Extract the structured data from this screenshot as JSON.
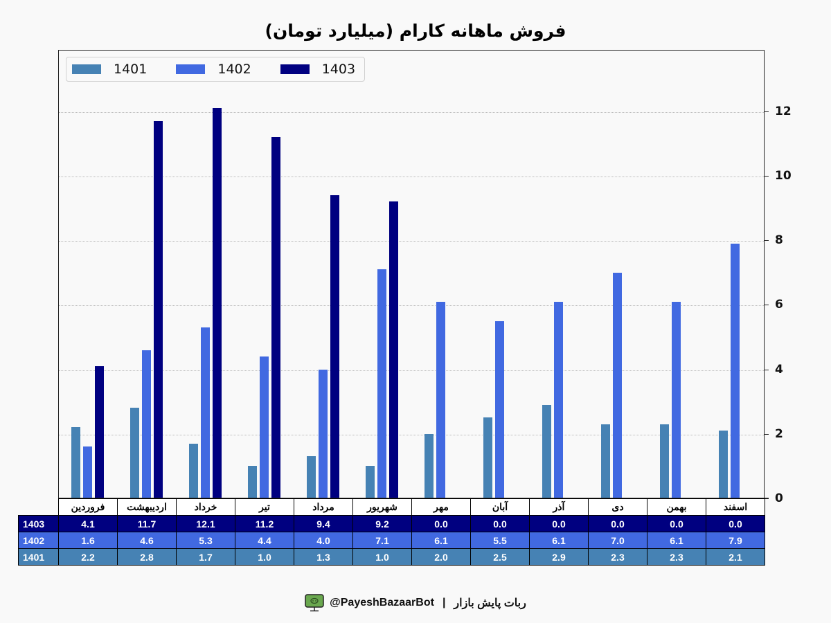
{
  "title": "فروش ماهانه کارام (میلیارد تومان)",
  "colors": {
    "1401": "#4682b4",
    "1402": "#4169e1",
    "1403": "#000080",
    "background": "#f9f9f9"
  },
  "legend": [
    {
      "label": "1401",
      "color": "#4682b4"
    },
    {
      "label": "1402",
      "color": "#4169e1"
    },
    {
      "label": "1403",
      "color": "#000080"
    }
  ],
  "y_ticks": [
    "0",
    "2",
    "4",
    "6",
    "8",
    "10",
    "12"
  ],
  "table": {
    "months": [
      "فروردین",
      "اردیبهشت",
      "خرداد",
      "تیر",
      "مرداد",
      "شهریور",
      "مهر",
      "آبان",
      "آذر",
      "دی",
      "بهمن",
      "اسفند"
    ],
    "rows": [
      {
        "label": "1403",
        "values": [
          "4.1",
          "11.7",
          "12.1",
          "11.2",
          "9.4",
          "9.2",
          "0.0",
          "0.0",
          "0.0",
          "0.0",
          "0.0",
          "0.0"
        ]
      },
      {
        "label": "1402",
        "values": [
          "1.6",
          "4.6",
          "5.3",
          "4.4",
          "4.0",
          "7.1",
          "6.1",
          "5.5",
          "6.1",
          "7.0",
          "6.1",
          "7.9"
        ]
      },
      {
        "label": "1401",
        "values": [
          "2.2",
          "2.8",
          "1.7",
          "1.0",
          "1.3",
          "1.0",
          "2.0",
          "2.5",
          "2.9",
          "2.3",
          "2.3",
          "2.1"
        ]
      }
    ]
  },
  "footer": {
    "handle": "@PayeshBazaarBot",
    "separator": "|",
    "bot_name": "ربات پایش بازار",
    "icon": "monitor-bot-icon"
  },
  "chart_data": {
    "type": "bar",
    "title": "فروش ماهانه کارام (میلیارد تومان)",
    "xlabel": "",
    "ylabel": "",
    "ylim": [
      0,
      13.9
    ],
    "y_axis_position": "right",
    "grid": "horizontal dotted",
    "legend_position": "upper left",
    "categories": [
      "فروردین",
      "اردیبهشت",
      "خرداد",
      "تیر",
      "مرداد",
      "شهریور",
      "مهر",
      "آبان",
      "آذر",
      "دی",
      "بهمن",
      "اسفند"
    ],
    "series": [
      {
        "name": "1401",
        "color": "#4682b4",
        "values": [
          2.2,
          2.8,
          1.7,
          1.0,
          1.3,
          1.0,
          2.0,
          2.5,
          2.9,
          2.3,
          2.3,
          2.1
        ]
      },
      {
        "name": "1402",
        "color": "#4169e1",
        "values": [
          1.6,
          4.6,
          5.3,
          4.4,
          4.0,
          7.1,
          6.1,
          5.5,
          6.1,
          7.0,
          6.1,
          7.9
        ]
      },
      {
        "name": "1403",
        "color": "#000080",
        "values": [
          4.1,
          11.7,
          12.1,
          11.2,
          9.4,
          9.2,
          0.0,
          0.0,
          0.0,
          0.0,
          0.0,
          0.0
        ]
      }
    ]
  }
}
